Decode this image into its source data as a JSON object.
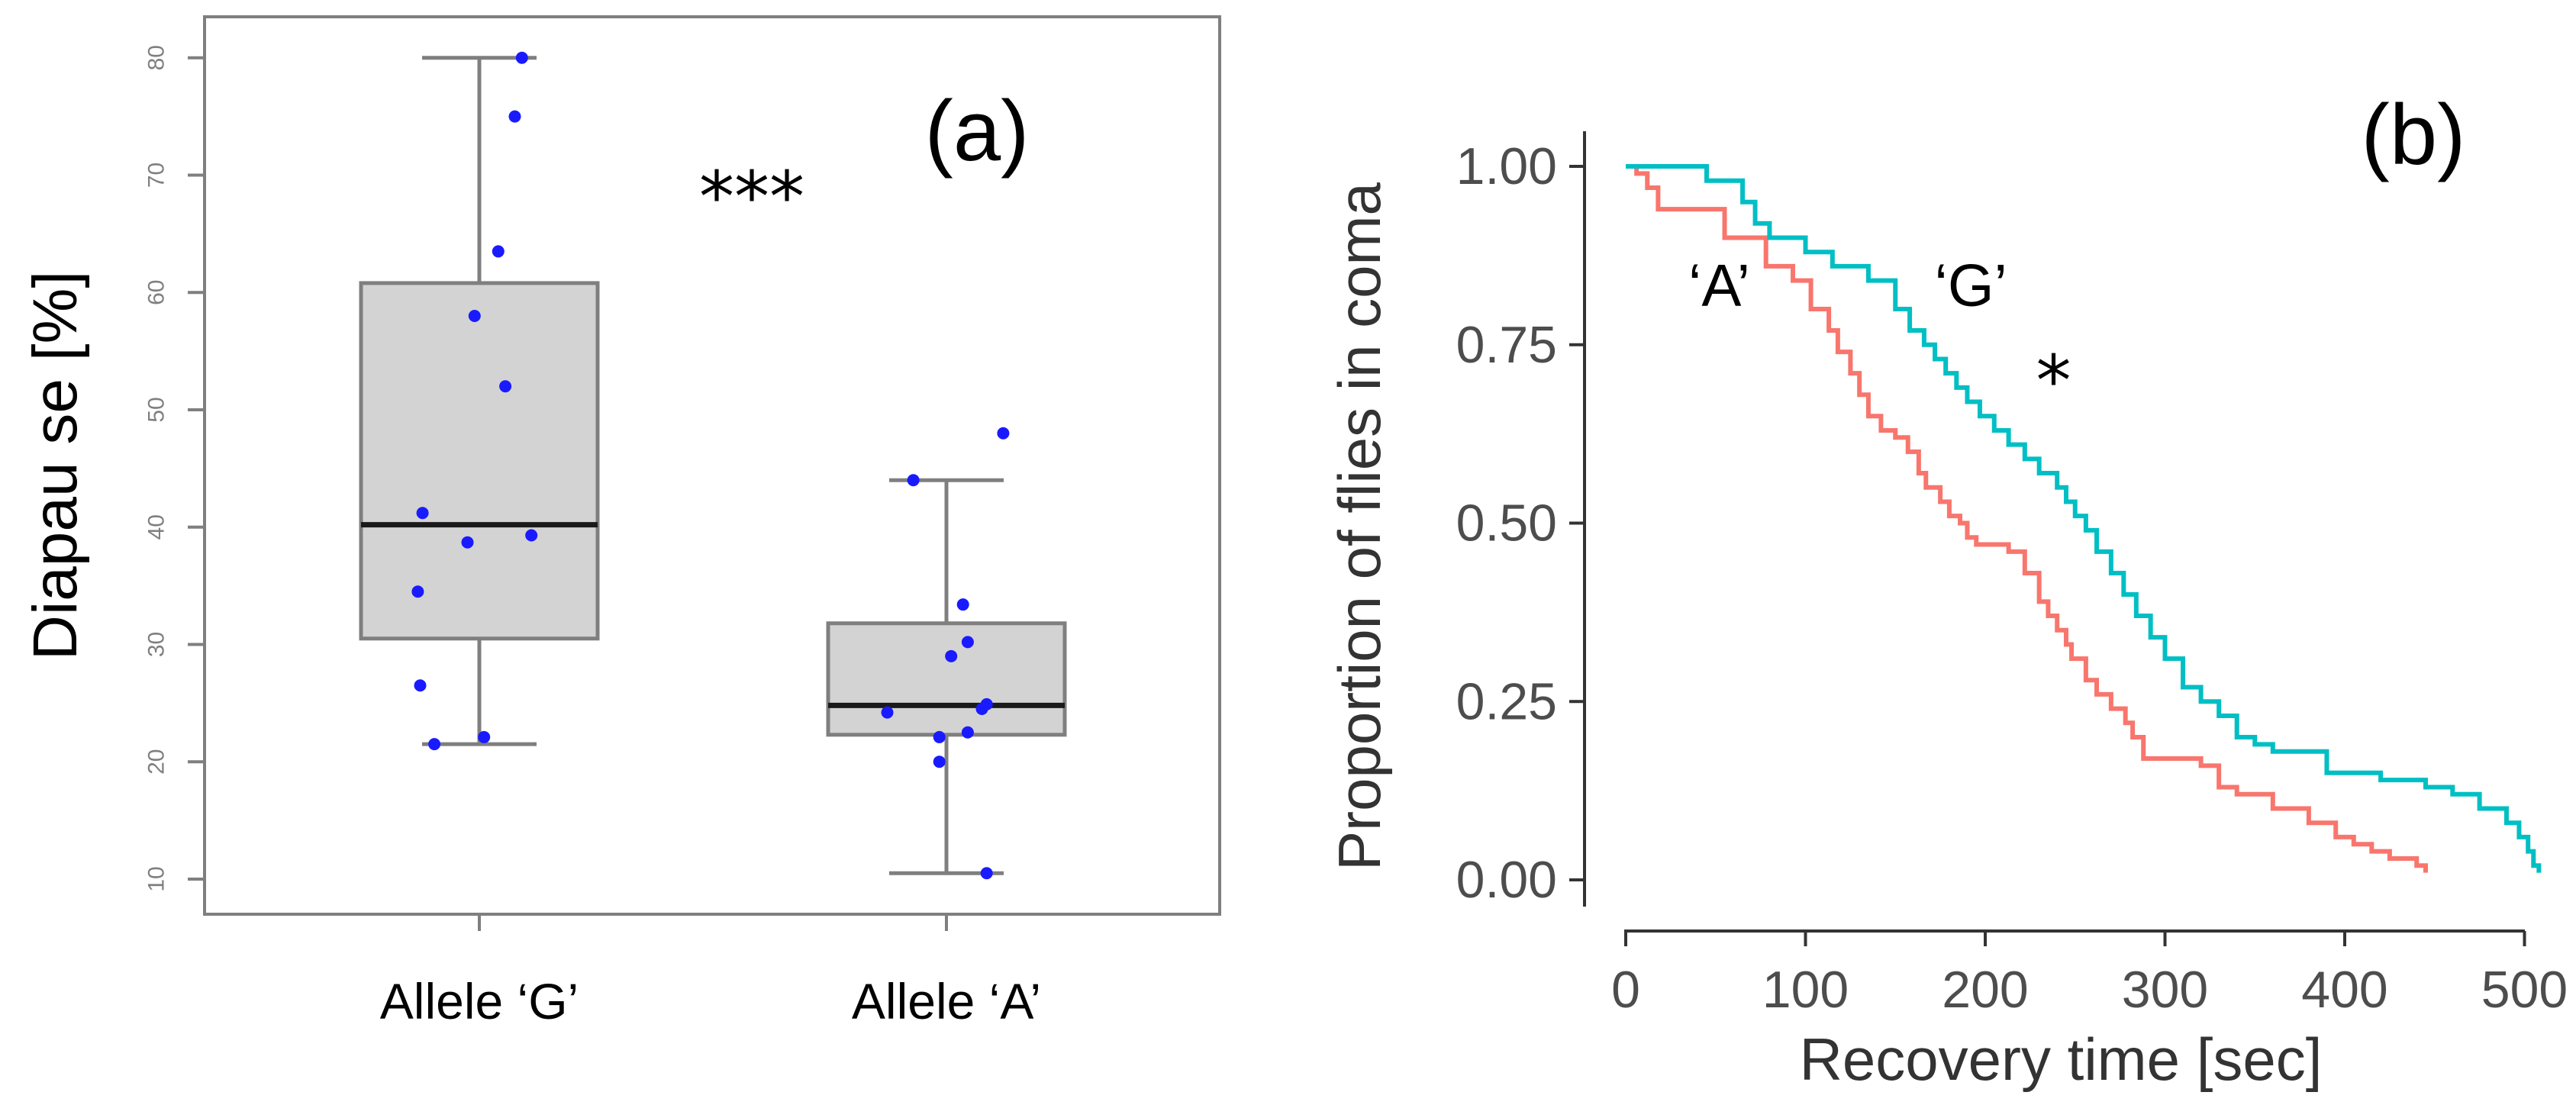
{
  "chart_data": [
    {
      "panel": "a",
      "type": "box",
      "panel_label": "(a)",
      "ylabel": "Diapau se [%]",
      "ylim": [
        8.5,
        82
      ],
      "yticks": [
        10,
        20,
        30,
        40,
        50,
        60,
        70,
        80
      ],
      "significance": "***",
      "categories": [
        "Allele ‘G’",
        "Allele ‘A’"
      ],
      "boxes": [
        {
          "name": "Allele ‘G’",
          "whisker_low": 21.5,
          "q1": 30.5,
          "median": 40.2,
          "q3": 60.8,
          "whisker_high": 80
        },
        {
          "name": "Allele ‘A’",
          "whisker_low": 10.5,
          "q1": 22.3,
          "median": 24.8,
          "q3": 31.8,
          "whisker_high": 44
        }
      ],
      "points": [
        {
          "group": 0,
          "jitter": 0.18,
          "y": 80
        },
        {
          "group": 0,
          "jitter": 0.15,
          "y": 75
        },
        {
          "group": 0,
          "jitter": 0.08,
          "y": 63.5
        },
        {
          "group": 0,
          "jitter": -0.02,
          "y": 58
        },
        {
          "group": 0,
          "jitter": 0.11,
          "y": 52
        },
        {
          "group": 0,
          "jitter": -0.24,
          "y": 41.2
        },
        {
          "group": 0,
          "jitter": -0.05,
          "y": 38.7
        },
        {
          "group": 0,
          "jitter": 0.22,
          "y": 39.3
        },
        {
          "group": 0,
          "jitter": -0.26,
          "y": 34.5
        },
        {
          "group": 0,
          "jitter": -0.25,
          "y": 26.5
        },
        {
          "group": 0,
          "jitter": -0.19,
          "y": 21.5
        },
        {
          "group": 0,
          "jitter": 0.02,
          "y": 22.1
        },
        {
          "group": 1,
          "jitter": 0.24,
          "y": 48
        },
        {
          "group": 1,
          "jitter": -0.14,
          "y": 44
        },
        {
          "group": 1,
          "jitter": 0.07,
          "y": 33.4
        },
        {
          "group": 1,
          "jitter": 0.09,
          "y": 30.2
        },
        {
          "group": 1,
          "jitter": 0.02,
          "y": 29
        },
        {
          "group": 1,
          "jitter": 0.17,
          "y": 24.9
        },
        {
          "group": 1,
          "jitter": 0.15,
          "y": 24.5
        },
        {
          "group": 1,
          "jitter": -0.25,
          "y": 24.2
        },
        {
          "group": 1,
          "jitter": -0.03,
          "y": 22.1
        },
        {
          "group": 1,
          "jitter": 0.09,
          "y": 22.5
        },
        {
          "group": 1,
          "jitter": -0.03,
          "y": 20
        },
        {
          "group": 1,
          "jitter": 0.17,
          "y": 10.5
        }
      ],
      "colors": {
        "box_fill": "#d3d3d3",
        "box_line": "#7f7f7f",
        "median": "#1a1a1a",
        "point": "#1a1aff",
        "frame": "#7f7f7f"
      }
    },
    {
      "panel": "b",
      "type": "line",
      "subtype": "step",
      "panel_label": "(b)",
      "xlabel": "Recovery time [sec]",
      "ylabel": "Proportion of flies in coma",
      "xlim": [
        -20,
        515
      ],
      "ylim": [
        -0.05,
        1.05
      ],
      "xticks": [
        0,
        100,
        200,
        300,
        400,
        500
      ],
      "yticks": [
        0.0,
        0.25,
        0.5,
        0.75,
        1.0
      ],
      "ytick_labels": [
        "0.00",
        "0.25",
        "0.50",
        "0.75",
        "1.00"
      ],
      "significance": "*",
      "series": [
        {
          "name": "‘A’",
          "color": "#f8766d",
          "x": [
            0,
            6,
            12,
            18,
            55,
            78,
            93,
            103,
            113,
            118,
            125,
            130,
            135,
            142,
            150,
            157,
            163,
            167,
            175,
            180,
            186,
            190,
            195,
            205,
            213,
            222,
            230,
            235,
            240,
            245,
            248,
            256,
            262,
            270,
            278,
            282,
            288,
            300,
            320,
            330,
            340,
            360,
            380,
            395,
            405,
            415,
            425,
            440,
            445
          ],
          "y": [
            1.0,
            0.99,
            0.97,
            0.94,
            0.9,
            0.86,
            0.84,
            0.8,
            0.77,
            0.74,
            0.71,
            0.68,
            0.65,
            0.63,
            0.62,
            0.6,
            0.57,
            0.55,
            0.53,
            0.51,
            0.5,
            0.48,
            0.47,
            0.47,
            0.46,
            0.43,
            0.39,
            0.37,
            0.35,
            0.33,
            0.31,
            0.28,
            0.26,
            0.24,
            0.22,
            0.2,
            0.17,
            0.17,
            0.16,
            0.13,
            0.12,
            0.1,
            0.08,
            0.06,
            0.05,
            0.04,
            0.03,
            0.02,
            0.01
          ]
        },
        {
          "name": "‘G’",
          "color": "#00bfc4",
          "x": [
            0,
            45,
            65,
            72,
            80,
            100,
            115,
            135,
            150,
            158,
            166,
            172,
            178,
            184,
            190,
            197,
            205,
            213,
            222,
            230,
            240,
            245,
            250,
            256,
            262,
            270,
            277,
            284,
            292,
            300,
            310,
            320,
            330,
            340,
            350,
            360,
            390,
            420,
            445,
            460,
            475,
            490,
            497,
            502,
            505,
            508
          ],
          "y": [
            1.0,
            0.98,
            0.95,
            0.92,
            0.9,
            0.88,
            0.86,
            0.84,
            0.8,
            0.77,
            0.75,
            0.73,
            0.71,
            0.69,
            0.67,
            0.65,
            0.63,
            0.61,
            0.59,
            0.57,
            0.55,
            0.53,
            0.51,
            0.49,
            0.46,
            0.43,
            0.4,
            0.37,
            0.34,
            0.31,
            0.27,
            0.25,
            0.23,
            0.2,
            0.19,
            0.18,
            0.15,
            0.14,
            0.13,
            0.12,
            0.1,
            0.08,
            0.06,
            0.04,
            0.02,
            0.01
          ]
        }
      ],
      "series_labels": [
        {
          "text": "‘A’",
          "x": 52,
          "y": 0.805
        },
        {
          "text": "‘G’",
          "x": 192,
          "y": 0.805
        }
      ],
      "star_pos": {
        "x": 238,
        "y": 0.665
      }
    }
  ]
}
